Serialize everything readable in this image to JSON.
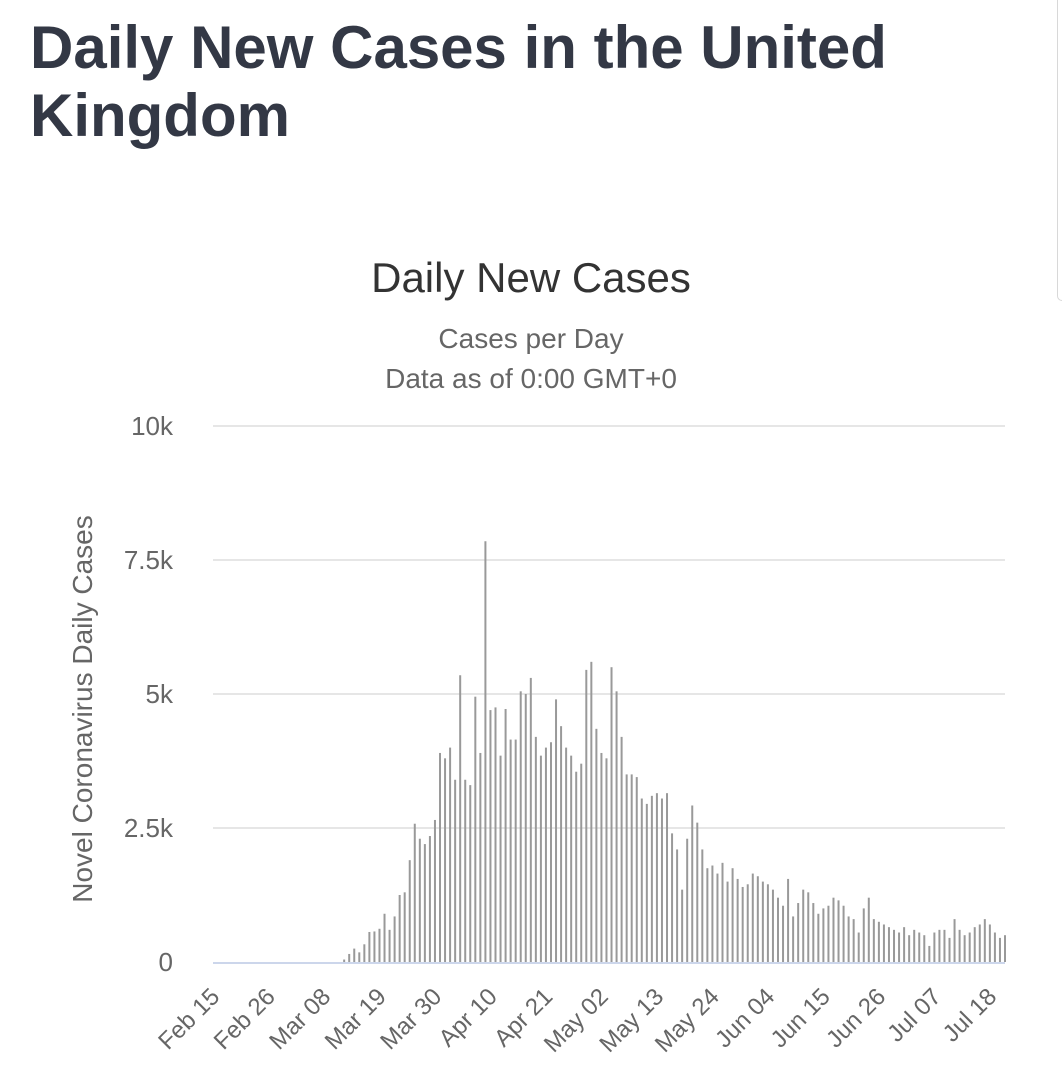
{
  "page": {
    "heading": "Daily New Cases in the United Kingdom"
  },
  "chart_data": {
    "type": "bar",
    "title": "Daily New Cases",
    "subtitles": [
      "Cases per Day",
      "Data as of 0:00 GMT+0"
    ],
    "xlabel": "",
    "ylabel": "Novel Coronavirus Daily Cases",
    "ylim": [
      0,
      10000
    ],
    "y_ticks": [
      {
        "value": 0,
        "label": "0"
      },
      {
        "value": 2500,
        "label": "2.5k"
      },
      {
        "value": 5000,
        "label": "5k"
      },
      {
        "value": 7500,
        "label": "7.5k"
      },
      {
        "value": 10000,
        "label": "10k"
      }
    ],
    "x_ticks": [
      "Feb 15",
      "Feb 26",
      "Mar 08",
      "Mar 19",
      "Mar 30",
      "Apr 10",
      "Apr 21",
      "May 02",
      "May 13",
      "May 24",
      "Jun 04",
      "Jun 15",
      "Jun 26",
      "Jul 07",
      "Jul 18"
    ],
    "grid": true,
    "bar_color": "#999999",
    "start_date": "Feb 15",
    "values": [
      0,
      0,
      0,
      0,
      0,
      0,
      0,
      0,
      0,
      0,
      0,
      0,
      0,
      0,
      0,
      0,
      0,
      0,
      0,
      0,
      0,
      0,
      0,
      0,
      0,
      0,
      46,
      150,
      250,
      180,
      330,
      560,
      570,
      620,
      900,
      600,
      850,
      1250,
      1300,
      1900,
      2580,
      2300,
      2200,
      2350,
      2650,
      3900,
      3800,
      4000,
      3400,
      5350,
      3400,
      3300,
      4950,
      3900,
      7850,
      4700,
      4750,
      3850,
      4720,
      4150,
      4150,
      5050,
      5000,
      5300,
      4200,
      3850,
      4000,
      4100,
      4900,
      4400,
      4000,
      3850,
      3550,
      3700,
      5450,
      5600,
      4350,
      3900,
      3800,
      5500,
      5050,
      4200,
      3500,
      3500,
      3450,
      3050,
      2950,
      3100,
      3150,
      3050,
      3150,
      2400,
      2100,
      1350,
      2300,
      2920,
      2600,
      2100,
      1750,
      1800,
      1650,
      1850,
      1500,
      1750,
      1550,
      1400,
      1450,
      1650,
      1600,
      1500,
      1450,
      1350,
      1200,
      1050,
      1550,
      850,
      1100,
      1350,
      1300,
      1100,
      900,
      1000,
      1050,
      1200,
      1150,
      1050,
      850,
      800,
      550,
      1000,
      1200,
      800,
      750,
      700,
      650,
      600,
      550,
      650,
      500,
      600,
      550,
      500,
      300,
      550,
      600,
      600,
      450,
      800,
      600,
      500,
      550,
      650,
      700,
      800,
      700,
      550,
      450,
      500
    ]
  }
}
